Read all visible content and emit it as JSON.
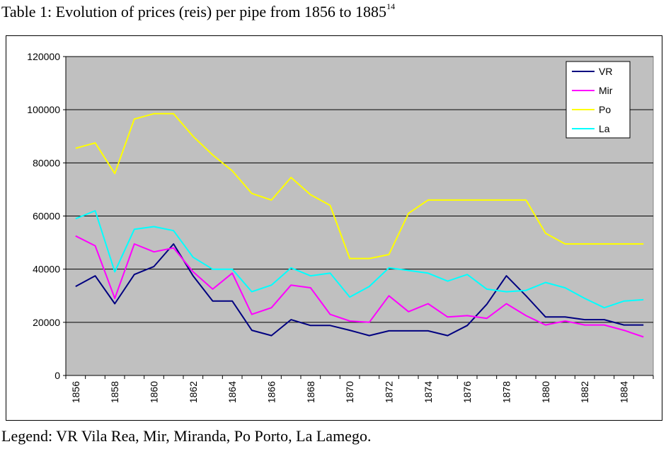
{
  "caption": {
    "text": "Table 1: Evolution of prices (reis) per pipe from 1856 to 1885",
    "footnote": "14"
  },
  "legend_note": "Legend: VR Vila Rea, Mir, Miranda, Po Porto, La Lamego.",
  "chart_data": {
    "type": "line",
    "title": "",
    "xlabel": "",
    "ylabel": "",
    "x": [
      1856,
      1857,
      1858,
      1859,
      1860,
      1861,
      1862,
      1863,
      1864,
      1865,
      1866,
      1867,
      1868,
      1869,
      1870,
      1871,
      1872,
      1873,
      1874,
      1875,
      1876,
      1877,
      1878,
      1879,
      1880,
      1881,
      1882,
      1883,
      1884,
      1885
    ],
    "x_tick_labels": [
      "1856",
      "1858",
      "1860",
      "1862",
      "1864",
      "1866",
      "1868",
      "1870",
      "1872",
      "1874",
      "1876",
      "1878",
      "1880",
      "1882",
      "1884"
    ],
    "y_tick_labels": [
      "0",
      "20000",
      "40000",
      "60000",
      "80000",
      "100000",
      "120000"
    ],
    "ylim": [
      0,
      120000
    ],
    "grid": true,
    "legend_position": "top-right",
    "plot_background": "#c0c0c0",
    "series": [
      {
        "name": "VR",
        "color": "#000080",
        "values": [
          33500,
          37500,
          27000,
          38000,
          41000,
          49500,
          37500,
          28000,
          28000,
          17000,
          15000,
          21000,
          18800,
          18800,
          17000,
          15000,
          16800,
          16800,
          16800,
          15000,
          18800,
          26800,
          37500,
          30000,
          22000,
          22000,
          21000,
          21000,
          19000,
          19000
        ]
      },
      {
        "name": "Mir",
        "color": "#ff00ff",
        "values": [
          52500,
          48800,
          29000,
          49500,
          46500,
          48000,
          39000,
          32500,
          38500,
          23000,
          25500,
          34000,
          33000,
          23000,
          20500,
          20000,
          30000,
          24000,
          27000,
          22000,
          22500,
          21500,
          27000,
          22500,
          19000,
          20500,
          19000,
          19000,
          17000,
          14500
        ]
      },
      {
        "name": "Po",
        "color": "#ffff00",
        "values": [
          85500,
          87500,
          76000,
          96500,
          98500,
          98500,
          90000,
          83000,
          77000,
          68500,
          66000,
          74500,
          68000,
          64000,
          44000,
          44000,
          45500,
          61000,
          66000,
          66000,
          66000,
          66000,
          66000,
          66000,
          53500,
          49500,
          49500,
          49500,
          49500,
          49500
        ]
      },
      {
        "name": "La",
        "color": "#00ffff",
        "values": [
          59000,
          62000,
          39000,
          55000,
          56000,
          54500,
          44500,
          40000,
          40000,
          31500,
          34000,
          40500,
          37500,
          38500,
          29500,
          33500,
          40500,
          39500,
          38500,
          35500,
          38000,
          32500,
          31500,
          32000,
          35000,
          33000,
          29000,
          25500,
          28000,
          28500
        ]
      }
    ]
  }
}
